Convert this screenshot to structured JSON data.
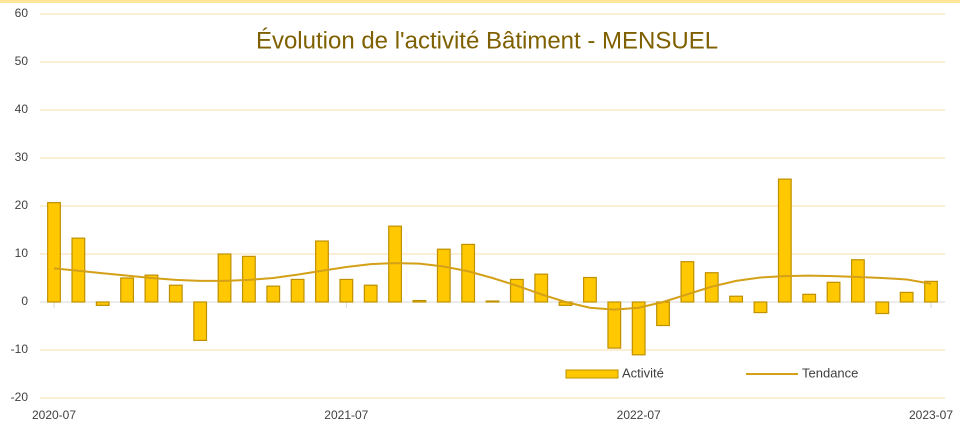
{
  "chart_data": {
    "type": "bar",
    "title": "Évolution de l'activité Bâtiment - MENSUEL",
    "categories": [
      "2020-07",
      null,
      null,
      null,
      null,
      null,
      null,
      null,
      null,
      null,
      null,
      null,
      "2021-07",
      null,
      null,
      null,
      null,
      null,
      null,
      null,
      null,
      null,
      null,
      null,
      "2022-07",
      null,
      null,
      null,
      null,
      null,
      null,
      null,
      null,
      null,
      null,
      null,
      "2023-07"
    ],
    "series": [
      {
        "name": "Activité",
        "type": "bar",
        "color": "#ffc800",
        "values": [
          20.7,
          13.3,
          -0.7,
          5,
          5.6,
          3.5,
          -8,
          10,
          9.5,
          3.3,
          4.7,
          12.7,
          4.7,
          3.5,
          15.8,
          0.3,
          11,
          12,
          0.2,
          4.7,
          5.8,
          -0.7,
          5.1,
          -9.6,
          -11,
          -4.9,
          8.4,
          6.1,
          1.2,
          -2.2,
          25.6,
          1.6,
          4.1,
          8.8,
          -2.4,
          2,
          4.3
        ]
      },
      {
        "name": "Tendance",
        "type": "line",
        "color": "#d4a017",
        "values": [
          7,
          6.5,
          6,
          5.5,
          5,
          4.6,
          4.4,
          4.4,
          4.6,
          5,
          5.7,
          6.5,
          7.3,
          7.9,
          8.1,
          8,
          7.4,
          6.4,
          5,
          3.4,
          1.6,
          0,
          -1.2,
          -1.6,
          -1.2,
          0,
          1.6,
          3.2,
          4.4,
          5.1,
          5.4,
          5.5,
          5.4,
          5.2,
          5,
          4.7,
          3.8
        ]
      }
    ],
    "ylim": [
      -20,
      60
    ],
    "yticks": [
      -20,
      -10,
      0,
      10,
      20,
      30,
      40,
      50,
      60
    ],
    "grid": true
  }
}
